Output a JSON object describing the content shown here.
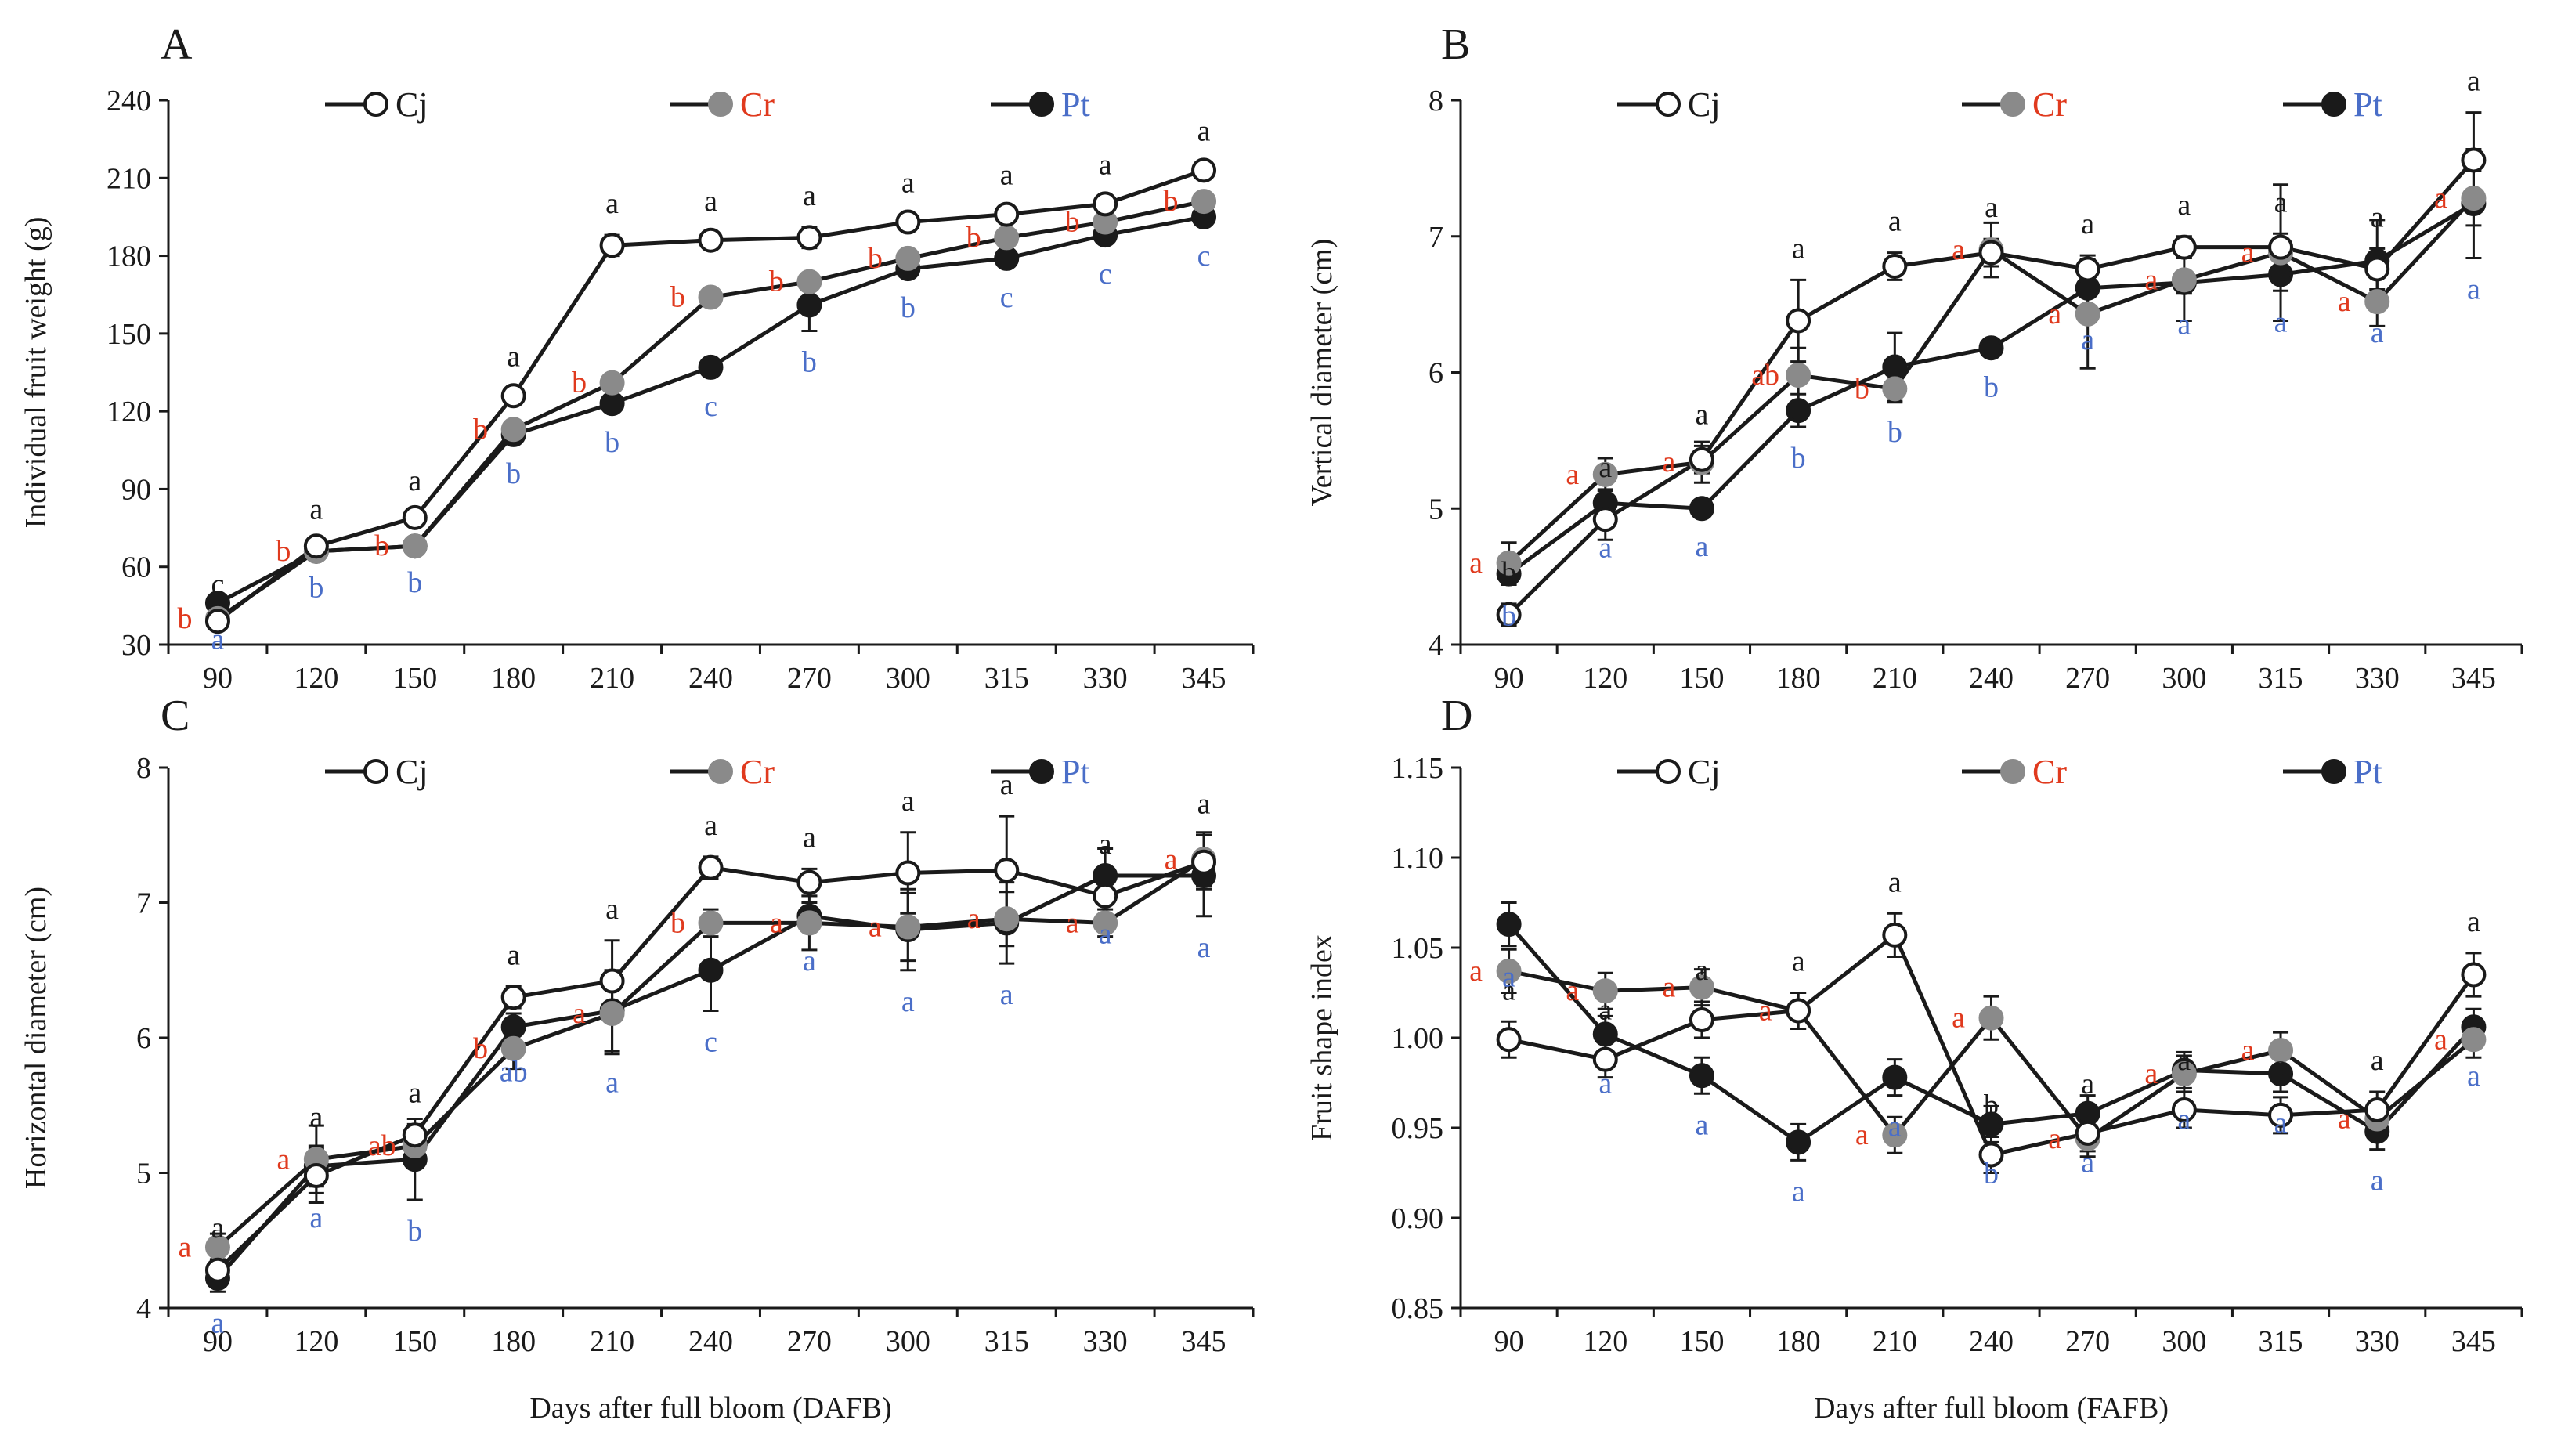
{
  "colors": {
    "Cj": "#1a1a1a",
    "Cr": "#e03a1e",
    "Pt": "#4a6ec8",
    "axis": "#1a1a1a"
  },
  "legend": [
    {
      "key": "Cj",
      "label": "Cj",
      "marker": "open-circle"
    },
    {
      "key": "Cr",
      "label": "Cr",
      "marker": "gray-circle"
    },
    {
      "key": "Pt",
      "label": "Pt",
      "marker": "black-circle"
    }
  ],
  "chart_data": [
    {
      "panel": "A",
      "type": "line",
      "ylabel": "Individual fruit weight (g)",
      "xlabel": "",
      "categories": [
        "90",
        "120",
        "150",
        "180",
        "210",
        "240",
        "270",
        "300",
        "315",
        "330",
        "345"
      ],
      "ylim": [
        30,
        240
      ],
      "yticks": [
        "30",
        "60",
        "90",
        "120",
        "150",
        "180",
        "210",
        "240"
      ],
      "series": [
        {
          "name": "Cj",
          "values": [
            39,
            68,
            79,
            126,
            184,
            186,
            187,
            193,
            196,
            200,
            213
          ],
          "err": [
            2,
            2,
            2,
            3,
            4,
            3,
            4,
            3,
            3,
            3,
            3
          ]
        },
        {
          "name": "Cr",
          "values": [
            40,
            66,
            68,
            113,
            131,
            164,
            170,
            179,
            187,
            193,
            201
          ],
          "err": [
            2,
            2,
            2,
            3,
            3,
            3,
            3,
            3,
            3,
            3,
            3
          ]
        },
        {
          "name": "Pt",
          "values": [
            46,
            66,
            68,
            111,
            123,
            137,
            161,
            175,
            179,
            188,
            195
          ],
          "err": [
            2,
            2,
            2,
            3,
            3,
            3,
            10,
            3,
            3,
            3,
            3
          ]
        }
      ],
      "letters": {
        "Cj": [
          "c",
          "a",
          "a",
          "a",
          "a",
          "a",
          "a",
          "a",
          "a",
          "a",
          "a"
        ],
        "Cr": [
          "b",
          "b",
          "b",
          "b",
          "b",
          "b",
          "b",
          "b",
          "b",
          "b",
          "b"
        ],
        "Pt": [
          "a",
          "b",
          "b",
          "b",
          "b",
          "c",
          "b",
          "b",
          "c",
          "c",
          "c"
        ]
      }
    },
    {
      "panel": "B",
      "type": "line",
      "ylabel": "Vertical diameter (cm)",
      "xlabel": "",
      "categories": [
        "90",
        "120",
        "150",
        "180",
        "210",
        "240",
        "270",
        "300",
        "315",
        "330",
        "345"
      ],
      "ylim": [
        4,
        8
      ],
      "yticks": [
        "4",
        "5",
        "6",
        "7",
        "8"
      ],
      "series": [
        {
          "name": "Cj",
          "values": [
            4.22,
            4.92,
            5.36,
            6.38,
            6.78,
            6.88,
            6.76,
            6.92,
            6.92,
            6.76,
            7.56
          ],
          "err": [
            0.08,
            0.15,
            0.1,
            0.3,
            0.1,
            0.1,
            0.1,
            0.08,
            0.1,
            0.15,
            0.35
          ]
        },
        {
          "name": "Cr",
          "values": [
            4.6,
            5.25,
            5.34,
            5.98,
            5.88,
            6.9,
            6.43,
            6.68,
            6.88,
            6.52,
            7.28
          ],
          "err": [
            0.15,
            0.12,
            0.15,
            0.2,
            0.1,
            0.2,
            0.4,
            0.3,
            0.5,
            0.18,
            0.2
          ]
        },
        {
          "name": "Pt",
          "values": [
            4.52,
            5.04,
            5.0,
            5.72,
            6.04,
            6.18,
            6.62,
            6.66,
            6.72,
            6.82,
            7.24
          ],
          "err": [
            0.08,
            0.1,
            0.05,
            0.12,
            0.25,
            0.06,
            0.15,
            0.08,
            0.12,
            0.3,
            0.4
          ]
        }
      ],
      "letters": {
        "Cj": [
          "b",
          "a",
          "a",
          "a",
          "a",
          "a",
          "a",
          "a",
          "a",
          "a",
          "a"
        ],
        "Cr": [
          "a",
          "a",
          "a",
          "ab",
          "b",
          "a",
          "a",
          "a",
          "a",
          "a",
          "a"
        ],
        "Pt": [
          "b",
          "a",
          "a",
          "b",
          "b",
          "b",
          "a",
          "a",
          "a",
          "a",
          "a"
        ]
      }
    },
    {
      "panel": "C",
      "type": "line",
      "ylabel": "Horizontal diameter (cm)",
      "xlabel": "Days after full bloom (DAFB)",
      "categories": [
        "90",
        "120",
        "150",
        "180",
        "210",
        "240",
        "270",
        "300",
        "315",
        "330",
        "345"
      ],
      "ylim": [
        4,
        8
      ],
      "yticks": [
        "4",
        "5",
        "6",
        "7",
        "8"
      ],
      "series": [
        {
          "name": "Cj",
          "values": [
            4.28,
            4.98,
            5.28,
            6.3,
            6.42,
            7.26,
            7.15,
            7.22,
            7.24,
            7.05,
            7.3
          ],
          "err": [
            0.08,
            0.2,
            0.08,
            0.08,
            0.3,
            0.08,
            0.1,
            0.3,
            0.4,
            0.15,
            0.2
          ]
        },
        {
          "name": "Cr",
          "values": [
            4.45,
            5.1,
            5.2,
            5.92,
            6.18,
            6.85,
            6.85,
            6.82,
            6.88,
            6.85,
            7.32
          ],
          "err": [
            0.1,
            0.25,
            0.1,
            0.15,
            0.3,
            0.1,
            0.2,
            0.25,
            0.2,
            0.1,
            0.2
          ]
        },
        {
          "name": "Pt",
          "values": [
            4.22,
            5.05,
            5.1,
            6.08,
            6.2,
            6.5,
            6.9,
            6.8,
            6.85,
            7.2,
            7.2
          ],
          "err": [
            0.1,
            0.15,
            0.3,
            0.1,
            0.3,
            0.3,
            0.1,
            0.3,
            0.3,
            0.2,
            0.3
          ]
        }
      ],
      "letters": {
        "Cj": [
          "a",
          "a",
          "a",
          "a",
          "a",
          "a",
          "a",
          "a",
          "a",
          "a",
          "a"
        ],
        "Cr": [
          "a",
          "a",
          "ab",
          "b",
          "a",
          "b",
          "a",
          "a",
          "a",
          "a",
          "a"
        ],
        "Pt": [
          "a",
          "a",
          "b",
          "ab",
          "a",
          "c",
          "a",
          "a",
          "a",
          "a",
          "a"
        ]
      }
    },
    {
      "panel": "D",
      "type": "line",
      "ylabel": "Fruit shape index",
      "xlabel": "Days after full bloom (FAFB)",
      "categories": [
        "90",
        "120",
        "150",
        "180",
        "210",
        "240",
        "270",
        "300",
        "315",
        "330",
        "345"
      ],
      "ylim": [
        0.85,
        1.15
      ],
      "yticks": [
        "0.85",
        "0.90",
        "0.95",
        "1.00",
        "1.05",
        "1.10",
        "1.15"
      ],
      "series": [
        {
          "name": "Cj",
          "values": [
            0.999,
            0.988,
            1.01,
            1.015,
            1.057,
            0.935,
            0.947,
            0.96,
            0.957,
            0.96,
            1.035
          ],
          "err": [
            0.01,
            0.01,
            0.01,
            0.01,
            0.012,
            0.01,
            0.01,
            0.01,
            0.01,
            0.01,
            0.012
          ]
        },
        {
          "name": "Cr",
          "values": [
            1.037,
            1.026,
            1.028,
            1.015,
            0.946,
            1.011,
            0.944,
            0.98,
            0.993,
            0.955,
            0.999
          ],
          "err": [
            0.012,
            0.01,
            0.01,
            0.01,
            0.01,
            0.012,
            0.01,
            0.01,
            0.01,
            0.01,
            0.01
          ]
        },
        {
          "name": "Pt",
          "values": [
            1.063,
            1.002,
            0.979,
            0.942,
            0.978,
            0.952,
            0.958,
            0.982,
            0.98,
            0.948,
            1.006
          ],
          "err": [
            0.012,
            0.01,
            0.01,
            0.01,
            0.01,
            0.01,
            0.01,
            0.01,
            0.01,
            0.01,
            0.01
          ]
        }
      ],
      "letters": {
        "Cj": [
          "a",
          "a",
          "a",
          "a",
          "a",
          "b",
          "a",
          "a",
          "a",
          "a",
          "a"
        ],
        "Cr": [
          "a",
          "a",
          "a",
          "a",
          "a",
          "a",
          "a",
          "a",
          "a",
          "a",
          "a"
        ],
        "Pt": [
          "a",
          "a",
          "a",
          "a",
          "a",
          "b",
          "a",
          "a",
          "a",
          "a",
          "a"
        ]
      }
    }
  ]
}
